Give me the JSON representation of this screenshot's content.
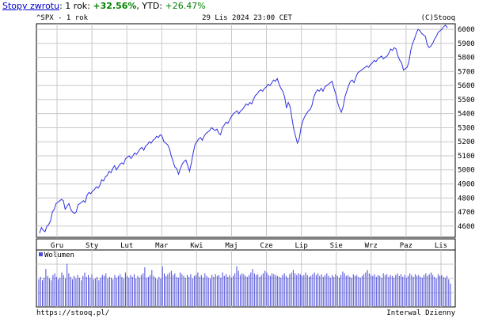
{
  "header": {
    "link_label": "Stopy zwrotu",
    "period_label": ": 1 rok: ",
    "period_value": "+32.56%",
    "ytd_label": ", YTD: ",
    "ytd_value": "+26.47%"
  },
  "chart_header": {
    "left": "^SPX - 1 rok",
    "center": "29 Lis 2024 23:00 CET",
    "right": "(C)Stooq"
  },
  "footer": {
    "left": "https://stooq.pl/",
    "right": "Interwal Dzienny"
  },
  "colors": {
    "line": "#3030e0",
    "grid": "#c8c8c8",
    "volume": "#4a4ad8",
    "bg": "#ffffff"
  },
  "chart_data": [
    {
      "type": "line",
      "title": "^SPX - 1 rok",
      "x_tick_labels": [
        "Gru",
        "Sty",
        "Lut",
        "Mar",
        "Kwi",
        "Maj",
        "Cze",
        "Lip",
        "Sie",
        "Wrz",
        "Paz",
        "Lis"
      ],
      "y_ticks": [
        4600,
        4700,
        4800,
        4900,
        5000,
        5100,
        5200,
        5300,
        5400,
        5500,
        5600,
        5700,
        5800,
        5900,
        6000
      ],
      "ylim": [
        4520,
        6040
      ],
      "grid": true,
      "series": [
        {
          "values": [
            4550,
            4590,
            4570,
            4560,
            4600,
            4610,
            4640,
            4700,
            4720,
            4760,
            4770,
            4780,
            4790,
            4780,
            4720,
            4740,
            4760,
            4720,
            4700,
            4690,
            4700,
            4750,
            4760,
            4770,
            4780,
            4770,
            4820,
            4840,
            4830,
            4850,
            4860,
            4880,
            4870,
            4890,
            4930,
            4920,
            4950,
            4960,
            4990,
            4980,
            5010,
            5030,
            5000,
            5020,
            5040,
            5050,
            5040,
            5080,
            5090,
            5100,
            5080,
            5100,
            5120,
            5110,
            5130,
            5150,
            5160,
            5140,
            5170,
            5180,
            5200,
            5190,
            5210,
            5220,
            5240,
            5230,
            5250,
            5240,
            5200,
            5190,
            5180,
            5150,
            5100,
            5060,
            5020,
            5010,
            4970,
            5010,
            5040,
            5060,
            5070,
            5030,
            4990,
            5050,
            5120,
            5180,
            5200,
            5220,
            5230,
            5210,
            5240,
            5260,
            5270,
            5280,
            5300,
            5290,
            5280,
            5290,
            5260,
            5250,
            5300,
            5320,
            5340,
            5330,
            5360,
            5380,
            5400,
            5410,
            5420,
            5400,
            5420,
            5430,
            5450,
            5470,
            5460,
            5480,
            5470,
            5500,
            5530,
            5540,
            5560,
            5570,
            5560,
            5580,
            5590,
            5610,
            5600,
            5620,
            5640,
            5630,
            5650,
            5610,
            5580,
            5560,
            5520,
            5440,
            5480,
            5450,
            5370,
            5290,
            5240,
            5190,
            5220,
            5300,
            5350,
            5380,
            5400,
            5420,
            5430,
            5460,
            5520,
            5550,
            5570,
            5560,
            5580,
            5560,
            5590,
            5600,
            5610,
            5620,
            5630,
            5580,
            5540,
            5480,
            5440,
            5410,
            5450,
            5520,
            5560,
            5600,
            5630,
            5640,
            5620,
            5660,
            5690,
            5700,
            5710,
            5720,
            5730,
            5740,
            5730,
            5750,
            5760,
            5780,
            5770,
            5790,
            5800,
            5810,
            5790,
            5800,
            5810,
            5830,
            5860,
            5850,
            5870,
            5860,
            5810,
            5780,
            5760,
            5710,
            5720,
            5730,
            5770,
            5850,
            5900,
            5930,
            5970,
            6000,
            5990,
            5970,
            5960,
            5950,
            5890,
            5870,
            5880,
            5900,
            5930,
            5950,
            5980,
            5990,
            6000,
            6020,
            6030,
            6010
          ]
        }
      ]
    },
    {
      "type": "bar",
      "title": "Wolumen",
      "legend": "Wolumen",
      "values": [
        3.1,
        3.4,
        3.0,
        3.3,
        4.3,
        3.5,
        3.2,
        3.0,
        3.6,
        3.8,
        3.4,
        3.1,
        3.3,
        3.9,
        3.6,
        3.2,
        4.9,
        3.8,
        3.4,
        3.1,
        3.5,
        3.2,
        3.6,
        3.3,
        3.0,
        3.5,
        3.9,
        3.4,
        3.6,
        3.3,
        3.7,
        3.1,
        3.2,
        3.4,
        3.0,
        3.3,
        3.6,
        3.5,
        3.8,
        3.2,
        3.4,
        3.3,
        3.1,
        3.6,
        3.3,
        3.5,
        3.7,
        3.4,
        3.2,
        3.9,
        3.5,
        3.3,
        3.6,
        3.4,
        3.7,
        3.2,
        3.5,
        3.3,
        3.6,
        3.8,
        4.5,
        3.3,
        3.4,
        3.6,
        4.2,
        3.5,
        3.3,
        3.1,
        3.4,
        3.2,
        4.6,
        3.8,
        3.5,
        3.7,
        3.9,
        4.1,
        3.6,
        3.8,
        3.4,
        3.3,
        3.9,
        3.7,
        3.5,
        3.3,
        3.6,
        3.4,
        3.7,
        3.2,
        3.5,
        3.6,
        3.9,
        3.4,
        3.6,
        3.3,
        3.8,
        3.5,
        3.3,
        3.2,
        3.6,
        3.4,
        3.7,
        3.5,
        3.6,
        3.3,
        3.9,
        3.5,
        3.7,
        3.4,
        3.6,
        3.3,
        3.5,
        3.8,
        4.6,
        4.1,
        3.6,
        3.8,
        3.7,
        3.5,
        3.4,
        3.6,
        3.9,
        4.3,
        3.8,
        3.6,
        3.7,
        3.4,
        3.6,
        3.8,
        4.1,
        3.9,
        3.6,
        3.5,
        3.8,
        3.7,
        3.6,
        3.5,
        3.4,
        3.3,
        3.6,
        3.8,
        3.5,
        3.3,
        3.7,
        3.9,
        4.2,
        3.8,
        3.6,
        3.8,
        3.7,
        3.5,
        3.6,
        3.9,
        3.6,
        3.4,
        3.5,
        3.7,
        3.9,
        3.6,
        3.8,
        3.5,
        3.7,
        3.4,
        3.6,
        3.8,
        3.5,
        3.3,
        3.6,
        3.4,
        3.7,
        3.5,
        3.3,
        3.6,
        4.0,
        3.8,
        3.5,
        3.6,
        3.4,
        3.3,
        3.7,
        3.5,
        3.6,
        3.4,
        3.3,
        3.5,
        3.7,
        3.9,
        4.2,
        3.8,
        3.6,
        3.5,
        3.7,
        3.4,
        3.6,
        3.5,
        3.3,
        3.8,
        3.6,
        3.7,
        3.4,
        3.6,
        3.5,
        3.3,
        3.6,
        3.8,
        3.5,
        3.7,
        3.4,
        3.6,
        3.3,
        3.5,
        3.8,
        3.6,
        3.4,
        3.7,
        3.5,
        3.6,
        3.4,
        3.3,
        3.6,
        3.8,
        3.5,
        3.7,
        3.9,
        3.6,
        3.4,
        3.2,
        3.7,
        3.5,
        3.6,
        3.4,
        3.3,
        3.5,
        3.1,
        2.6
      ]
    }
  ]
}
